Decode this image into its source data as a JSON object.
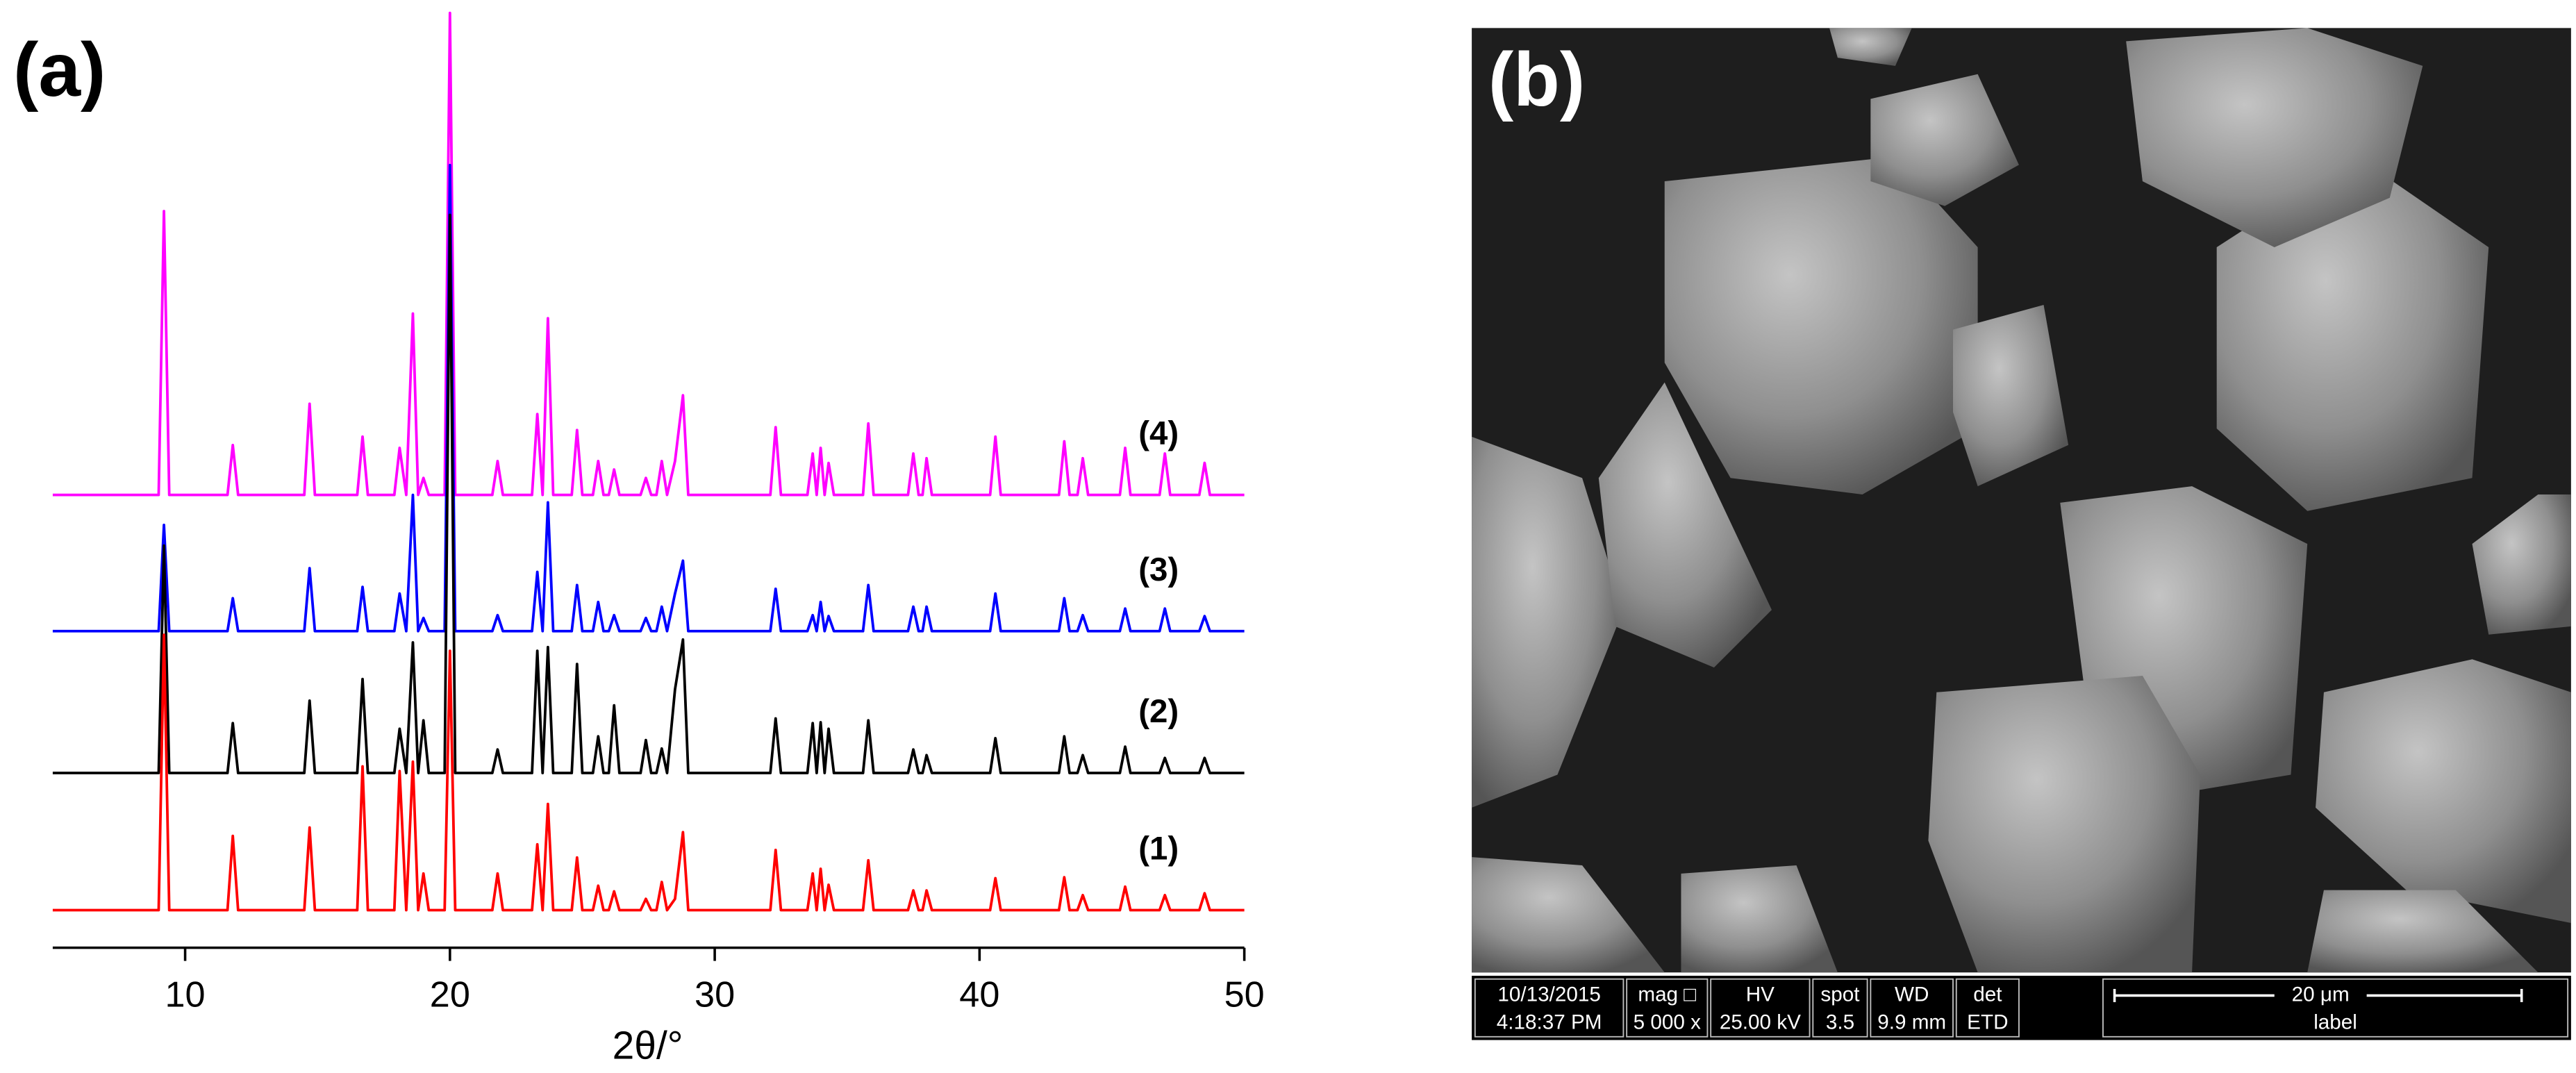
{
  "chart_data": {
    "type": "line",
    "panel_label": "(a)",
    "xlabel": "2θ/°",
    "xlim": [
      5,
      50
    ],
    "xticks": [
      10,
      20,
      30,
      40,
      50
    ],
    "ylim": [
      0,
      100
    ],
    "grid": false,
    "x": [
      5,
      9.0,
      9.2,
      9.4,
      11.6,
      11.8,
      12.0,
      14.5,
      14.7,
      14.9,
      16.5,
      16.7,
      16.9,
      17.9,
      18.1,
      18.35,
      18.6,
      18.8,
      19.0,
      19.2,
      19.8,
      20.0,
      20.2,
      21.6,
      21.8,
      22.0,
      23.1,
      23.3,
      23.5,
      23.7,
      23.9,
      24.6,
      24.8,
      25.0,
      25.4,
      25.6,
      25.8,
      26.0,
      26.2,
      26.4,
      27.2,
      27.4,
      27.6,
      27.8,
      28.0,
      28.2,
      28.5,
      28.8,
      29.0,
      32.1,
      32.3,
      32.5,
      33.5,
      33.7,
      33.85,
      34.0,
      34.15,
      34.3,
      34.5,
      35.6,
      35.8,
      36.0,
      37.3,
      37.5,
      37.7,
      37.85,
      38.0,
      38.2,
      40.4,
      40.6,
      40.8,
      43.0,
      43.2,
      43.4,
      43.7,
      43.9,
      44.1,
      45.3,
      45.5,
      45.7,
      46.8,
      47.0,
      47.2,
      48.3,
      48.5,
      48.7,
      50
    ],
    "series": [
      {
        "name": "(1)",
        "color": "#ff0000",
        "values": [
          4,
          4,
          33.3,
          4,
          4,
          11.9,
          4,
          4,
          12.8,
          4,
          4,
          19.3,
          4,
          4,
          18.8,
          4,
          19.8,
          4,
          7.9,
          4,
          4,
          31.6,
          4,
          4,
          7.9,
          4,
          4,
          11,
          4,
          15.3,
          4,
          4,
          9.6,
          4,
          4,
          6.6,
          4,
          4,
          6,
          4,
          4,
          5.2,
          4,
          4,
          7,
          4,
          5.2,
          12.3,
          4,
          4,
          10.4,
          4,
          4,
          7.9,
          4,
          8.4,
          4,
          6.7,
          4,
          4,
          9.3,
          4,
          4,
          6.1,
          4,
          4,
          6.1,
          4,
          4,
          7.4,
          4,
          4,
          7.5,
          4,
          4,
          5.6,
          4,
          4,
          6.5,
          4,
          4,
          5.6,
          4,
          4,
          5.8,
          4,
          4
        ]
      },
      {
        "name": "(2)",
        "color": "#000000",
        "values": [
          18.6,
          18.6,
          42.8,
          18.6,
          18.6,
          23.9,
          18.6,
          18.6,
          26.3,
          18.6,
          18.6,
          28.6,
          18.6,
          18.6,
          23.3,
          18.6,
          32.5,
          18.6,
          24.2,
          18.6,
          18.6,
          78,
          18.6,
          18.6,
          21.1,
          18.6,
          18.6,
          31.6,
          18.6,
          32,
          18.6,
          18.6,
          30.2,
          18.6,
          18.6,
          22.5,
          18.6,
          18.6,
          25.8,
          18.6,
          18.6,
          22.1,
          18.6,
          18.6,
          21.2,
          18.6,
          27.5,
          32.8,
          18.6,
          18.6,
          24.4,
          18.6,
          18.6,
          23.9,
          18.6,
          24,
          18.6,
          23.3,
          18.6,
          18.6,
          24.2,
          18.6,
          18.6,
          21.1,
          18.6,
          18.6,
          20.5,
          18.6,
          18.6,
          22.3,
          18.6,
          18.6,
          22.5,
          18.6,
          18.6,
          20.5,
          18.6,
          18.6,
          21.4,
          18.6,
          18.6,
          20.2,
          18.6,
          18.6,
          20.2,
          18.6,
          18.6
        ]
      },
      {
        "name": "(3)",
        "color": "#0000ff",
        "values": [
          33.7,
          33.7,
          45,
          33.7,
          33.7,
          37.2,
          33.7,
          33.7,
          40.4,
          33.7,
          33.7,
          38.4,
          33.7,
          33.7,
          37.7,
          33.7,
          48.2,
          33.7,
          35.1,
          33.7,
          33.7,
          83.3,
          33.7,
          33.7,
          35.4,
          33.7,
          33.7,
          40,
          33.7,
          47.4,
          33.7,
          33.7,
          38.6,
          33.7,
          33.7,
          36.8,
          33.7,
          33.7,
          35.4,
          33.7,
          33.7,
          35.1,
          33.7,
          33.7,
          36.3,
          33.7,
          37.7,
          41.2,
          33.7,
          33.7,
          38.2,
          33.7,
          33.7,
          35.4,
          33.7,
          36.8,
          33.7,
          35.3,
          33.7,
          33.7,
          38.6,
          33.7,
          33.7,
          36.3,
          33.7,
          33.7,
          36.3,
          33.7,
          33.7,
          37.7,
          33.7,
          33.7,
          37.2,
          33.7,
          33.7,
          35.4,
          33.7,
          33.7,
          36.1,
          33.7,
          33.7,
          36.1,
          33.7,
          33.7,
          35.3,
          33.7,
          33.7
        ]
      },
      {
        "name": "(4)",
        "color": "#ff00ff",
        "values": [
          48.2,
          48.2,
          78.4,
          48.2,
          48.2,
          53.5,
          48.2,
          48.2,
          57.9,
          48.2,
          48.2,
          54.4,
          48.2,
          48.2,
          53.2,
          48.2,
          67.5,
          48.2,
          50,
          48.2,
          48.2,
          99.5,
          48.2,
          48.2,
          51.8,
          48.2,
          48.2,
          56.8,
          48.2,
          67,
          48.2,
          48.2,
          55.1,
          48.2,
          48.2,
          51.8,
          48.2,
          48.2,
          50.9,
          48.2,
          48.2,
          50,
          48.2,
          48.2,
          51.8,
          48.2,
          51.8,
          58.8,
          48.2,
          48.2,
          55.4,
          48.2,
          48.2,
          52.6,
          48.2,
          53.2,
          48.2,
          51.6,
          48.2,
          48.2,
          55.8,
          48.2,
          48.2,
          52.6,
          48.2,
          48.2,
          52.1,
          48.2,
          48.2,
          54.4,
          48.2,
          48.2,
          53.9,
          48.2,
          48.2,
          52.1,
          48.2,
          48.2,
          53.2,
          48.2,
          48.2,
          52.6,
          48.2,
          48.2,
          51.6,
          48.2,
          48.2
        ]
      }
    ]
  },
  "image_panel": {
    "label": "(b)",
    "databar": {
      "columns": [
        {
          "header": "10/13/2015",
          "value": "4:18:37 PM"
        },
        {
          "header": "mag □",
          "value": "5 000 x"
        },
        {
          "header": "HV",
          "value": "25.00 kV"
        },
        {
          "header": "spot",
          "value": "3.5"
        },
        {
          "header": "WD",
          "value": "9.9 mm"
        },
        {
          "header": "det",
          "value": "ETD"
        }
      ],
      "scale_bar": "20 μm",
      "scale_caption": "label"
    }
  }
}
